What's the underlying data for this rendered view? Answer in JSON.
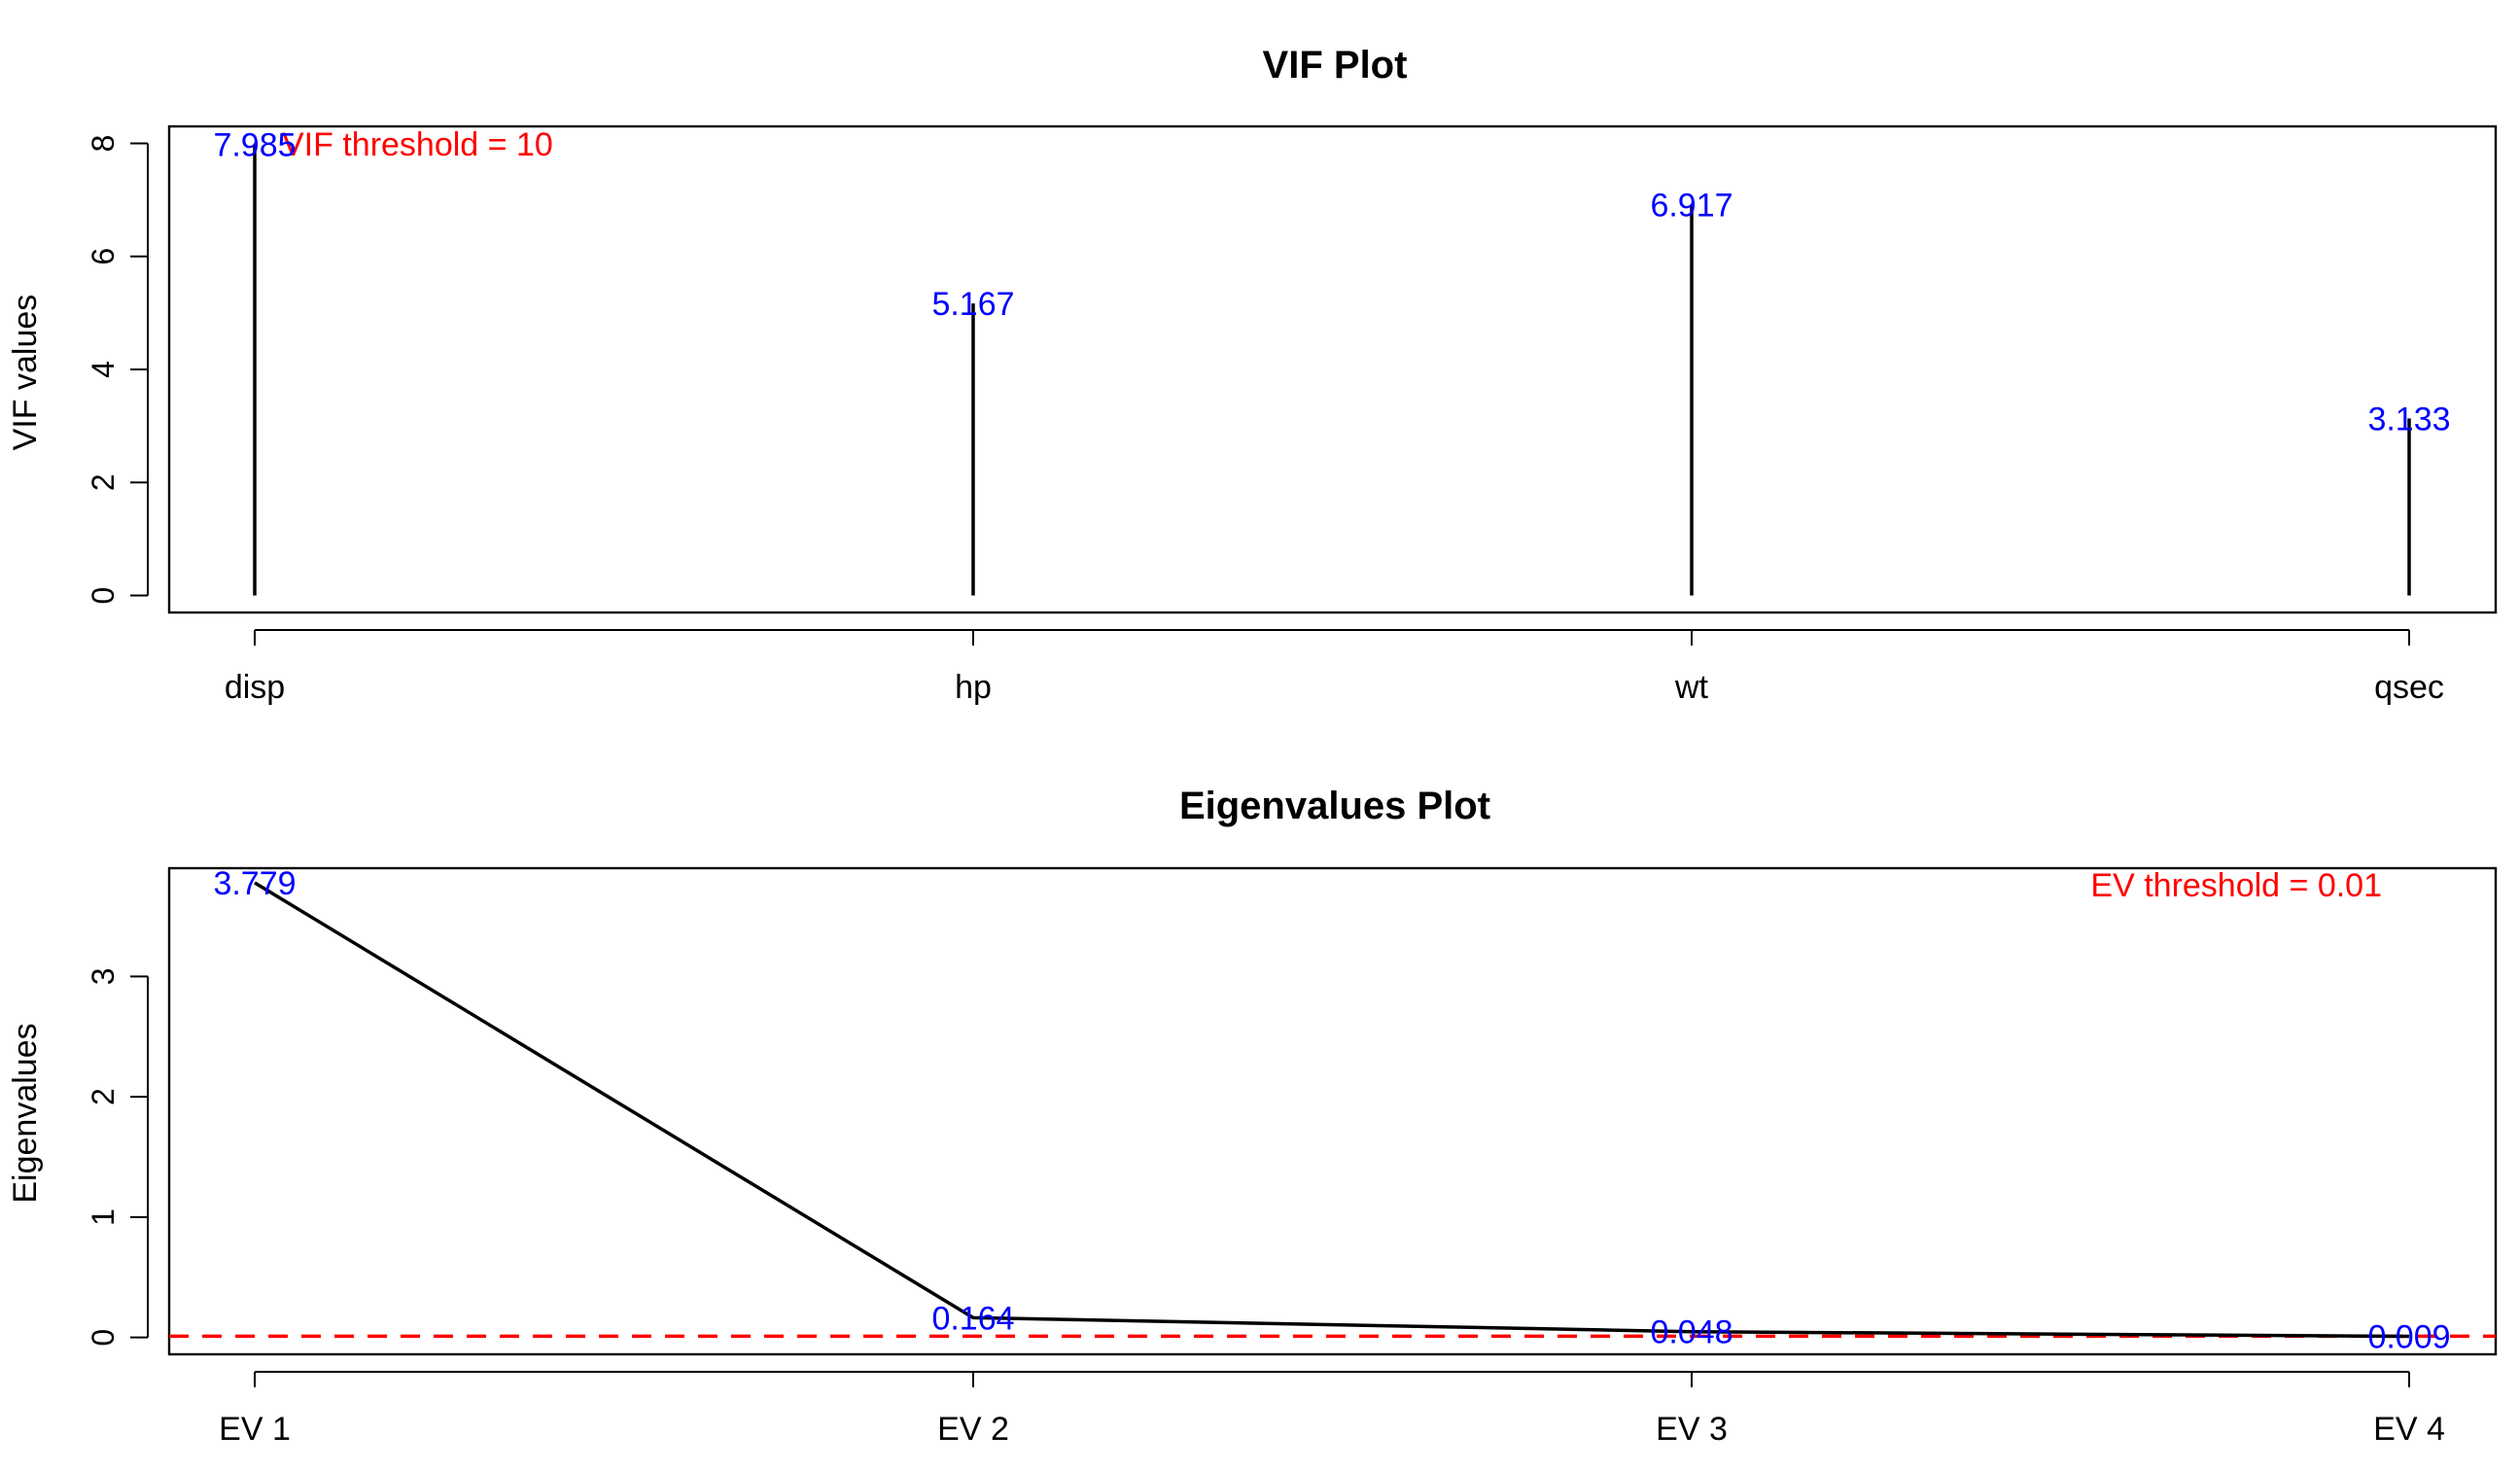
{
  "chart_data": [
    {
      "type": "bar",
      "title": "VIF Plot",
      "xlabel": "",
      "ylabel": "VIF values",
      "categories": [
        "disp",
        "hp",
        "wt",
        "qsec"
      ],
      "values": [
        7.985,
        5.167,
        6.917,
        3.133
      ],
      "value_labels": [
        "7.985",
        "5.167",
        "6.917",
        "3.133"
      ],
      "ylim": [
        -0.3,
        8.3
      ],
      "yticks": [
        0,
        2,
        4,
        6,
        8
      ],
      "annotation": "VIF threshold = 10",
      "style": "vertical lines from zero",
      "grid": false,
      "colors": {
        "marks": "#000000",
        "value_labels": "#0000ff",
        "annotation": "#ff0000"
      }
    },
    {
      "type": "line",
      "title": "Eigenvalues Plot",
      "xlabel": "",
      "ylabel": "Eigenvalues",
      "categories": [
        "EV 1",
        "EV 2",
        "EV 3",
        "EV 4"
      ],
      "values": [
        3.779,
        0.164,
        0.048,
        0.009
      ],
      "value_labels": [
        "3.779",
        "0.164",
        "0.048",
        "0.009"
      ],
      "ylim": [
        -0.14,
        3.9
      ],
      "yticks": [
        0,
        1,
        2,
        3
      ],
      "threshold": 0.01,
      "annotation": "EV threshold = 0.01",
      "grid": false,
      "colors": {
        "marks": "#000000",
        "value_labels": "#0000ff",
        "annotation": "#ff0000",
        "threshold_line": "#ff0000"
      }
    }
  ]
}
